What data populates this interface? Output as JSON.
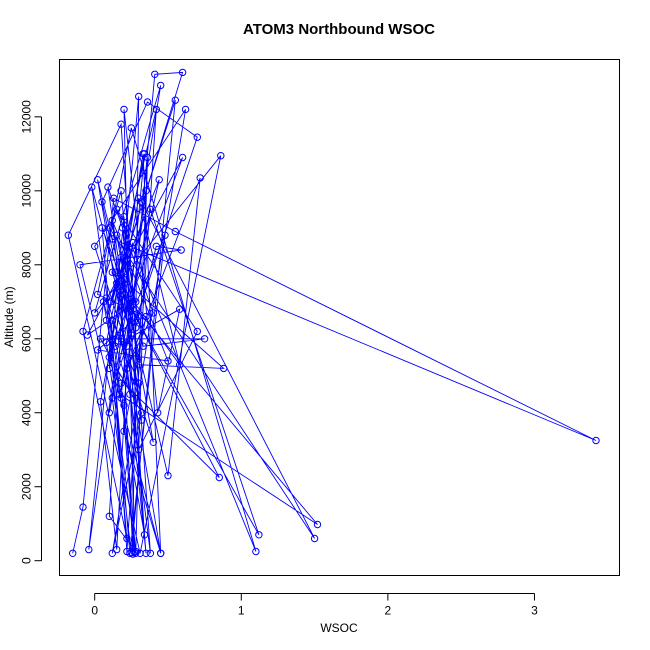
{
  "chart_data": {
    "type": "line",
    "title": "ATOM3 Northbound WSOC",
    "xlabel": "WSOC",
    "ylabel": "Altitude (m)",
    "xlim": [
      -0.24,
      3.58
    ],
    "ylim": [
      -400,
      13550
    ],
    "x_ticks": [
      0,
      1,
      2,
      3
    ],
    "y_ticks": [
      0,
      2000,
      4000,
      6000,
      8000,
      10000,
      12000
    ],
    "grid": false,
    "legend": "none",
    "color": "#0000ff",
    "series": [
      {
        "points": [
          [
            -0.15,
            200
          ],
          [
            -0.08,
            1450
          ],
          [
            0.13,
            9800
          ],
          [
            0.55,
            8900
          ],
          [
            3.42,
            3250
          ],
          [
            0.12,
            8700
          ],
          [
            0.02,
            10300
          ],
          [
            0.45,
            200
          ],
          [
            0.33,
            11000
          ],
          [
            0.12,
            6000
          ],
          [
            0.22,
            250
          ],
          [
            0.42,
            12200
          ],
          [
            0.08,
            6500
          ],
          [
            0.6,
            13200
          ],
          [
            0.41,
            13150
          ],
          [
            0.2,
            4200
          ],
          [
            0.28,
            200
          ],
          [
            0.36,
            10900
          ],
          [
            0.3,
            5300
          ],
          [
            0.88,
            5200
          ],
          [
            0.14,
            7800
          ],
          [
            0.38,
            200
          ],
          [
            0.18,
            11800
          ],
          [
            -0.18,
            8800
          ],
          [
            0.31,
            200
          ],
          [
            0.86,
            10950
          ],
          [
            0.0,
            6700
          ],
          [
            0.45,
            12850
          ],
          [
            0.32,
            9700
          ],
          [
            1.5,
            600
          ],
          [
            0.1,
            9000
          ],
          [
            0.5,
            2300
          ],
          [
            0.72,
            10350
          ],
          [
            0.18,
            4800
          ],
          [
            0.27,
            230
          ],
          [
            0.2,
            12200
          ],
          [
            0.43,
            4000
          ],
          [
            0.58,
            6800
          ],
          [
            0.14,
            5800
          ],
          [
            0.3,
            12550
          ],
          [
            0.26,
            180
          ],
          [
            0.18,
            7300
          ],
          [
            0.05,
            9700
          ],
          [
            0.36,
            12400
          ],
          [
            0.7,
            11450
          ],
          [
            0.15,
            5000
          ],
          [
            0.85,
            2250
          ],
          [
            0.2,
            7200
          ],
          [
            1.52,
            980
          ],
          [
            0.17,
            4500
          ],
          [
            0.28,
            6300
          ],
          [
            0.42,
            8500
          ],
          [
            0.59,
            8400
          ],
          [
            -0.1,
            8000
          ],
          [
            0.12,
            4400
          ],
          [
            0.25,
            220
          ],
          [
            0.55,
            12450
          ],
          [
            0.11,
            7000
          ],
          [
            0.44,
            10300
          ],
          [
            0.24,
            6800
          ],
          [
            0.19,
            9000
          ],
          [
            0.33,
            5800
          ],
          [
            0.75,
            6000
          ],
          [
            0.04,
            6000
          ],
          [
            0.32,
            4000
          ],
          [
            0.12,
            200
          ],
          [
            0.62,
            12200
          ],
          [
            0.0,
            8500
          ],
          [
            0.22,
            5800
          ],
          [
            0.35,
            10000
          ],
          [
            0.1,
            4000
          ],
          [
            0.38,
            9500
          ],
          [
            1.12,
            700
          ],
          [
            0.15,
            7500
          ],
          [
            0.29,
            6500
          ],
          [
            0.05,
            9000
          ],
          [
            0.24,
            200
          ],
          [
            0.48,
            8800
          ],
          [
            0.18,
            6000
          ],
          [
            0.3,
            3000
          ],
          [
            0.7,
            6200
          ],
          [
            0.15,
            9500
          ],
          [
            1.1,
            250
          ],
          [
            0.25,
            11700
          ],
          [
            0.02,
            7200
          ],
          [
            0.35,
            6600
          ],
          [
            0.2,
            3500
          ],
          [
            0.45,
            200
          ],
          [
            0.1,
            5500
          ],
          [
            0.6,
            10900
          ],
          [
            -0.05,
            6100
          ],
          [
            0.28,
            7000
          ],
          [
            0.18,
            8200
          ],
          [
            0.32,
            3800
          ],
          [
            0.09,
            10100
          ],
          [
            0.4,
            6700
          ],
          [
            0.22,
            5200
          ],
          [
            0.15,
            300
          ],
          [
            0.04,
            4300
          ],
          [
            0.3,
            9800
          ],
          [
            0.58,
            5300
          ],
          [
            0.12,
            7800
          ],
          [
            0.25,
            6100
          ],
          [
            -0.02,
            10100
          ],
          [
            0.18,
            4400
          ],
          [
            0.34,
            11000
          ],
          [
            0.08,
            5900
          ],
          [
            0.28,
            250
          ],
          [
            0.1,
            1200
          ],
          [
            0.2,
            7600
          ],
          [
            0.35,
            200
          ],
          [
            0.12,
            9200
          ],
          [
            0.5,
            5400
          ],
          [
            0.02,
            5700
          ],
          [
            0.3,
            6600
          ],
          [
            0.15,
            8800
          ],
          [
            0.4,
            3200
          ],
          [
            0.08,
            7100
          ],
          [
            0.22,
            600
          ],
          [
            -0.08,
            6200
          ],
          [
            0.18,
            10000
          ],
          [
            0.3,
            4800
          ],
          [
            0.12,
            6500
          ],
          [
            -0.04,
            300
          ],
          [
            0.26,
            8600
          ],
          [
            0.1,
            5200
          ],
          [
            0.2,
            9300
          ],
          [
            0.34,
            700
          ],
          [
            0.06,
            7000
          ],
          [
            0.24,
            4500
          ]
        ]
      }
    ]
  }
}
